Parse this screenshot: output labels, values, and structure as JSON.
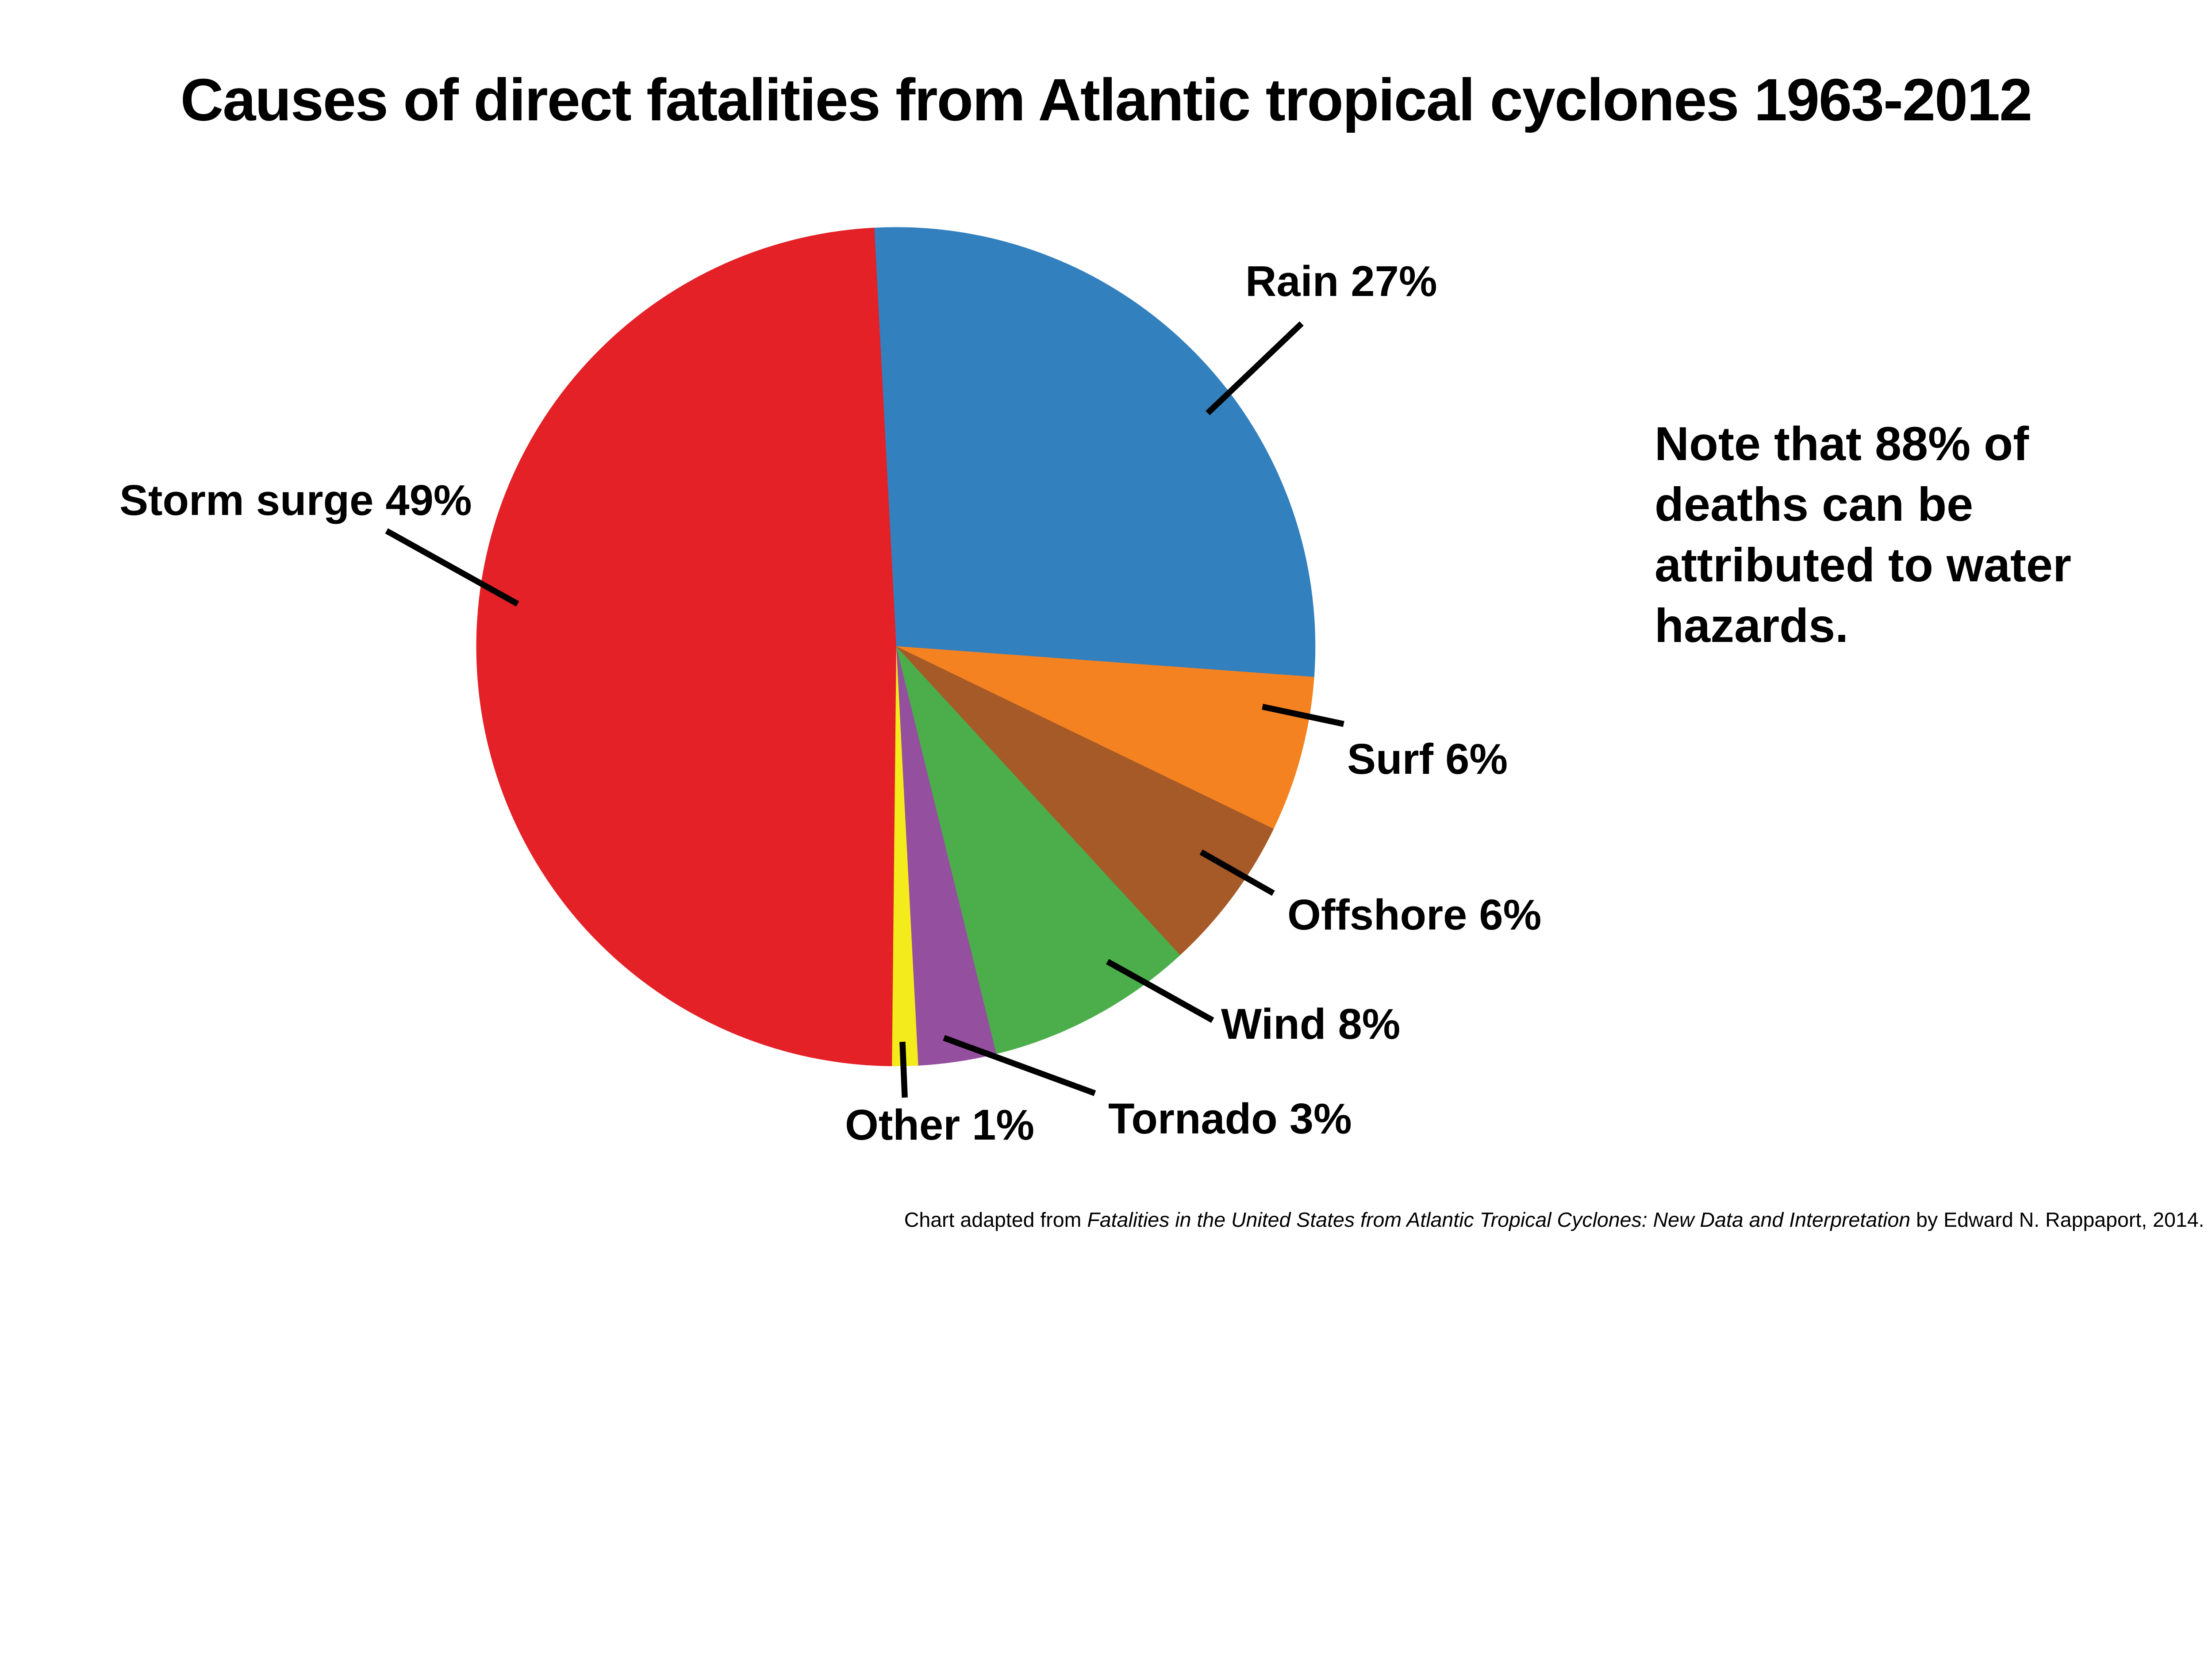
{
  "title": "Causes of direct fatalities from Atlantic tropical cyclones 1963-2012",
  "note_lines": [
    "Note that 88% of",
    "deaths can be",
    "attributed to water",
    "hazards."
  ],
  "footer": {
    "prefix": "Chart adapted from ",
    "source_title": "Fatalities in the United States from Atlantic Tropical Cyclones: New Data and Interpretation",
    "suffix": " by Edward N. Rappaport, 2014."
  },
  "chart_data": {
    "type": "pie",
    "title": "Causes of direct fatalities from Atlantic tropical cyclones 1963-2012",
    "unit": "%",
    "direction": "clockwise",
    "start_angle_deg": -3,
    "legend": "none",
    "label_style": "external labels with black leader lines",
    "background_color": "#ffffff",
    "categories": [
      "Rain",
      "Surf",
      "Offshore",
      "Wind",
      "Tornado",
      "Other",
      "Storm surge"
    ],
    "values": [
      27,
      6,
      6,
      8,
      3,
      1,
      49
    ],
    "slices": [
      {
        "name": "Rain",
        "value": 27,
        "label": "Rain 27%",
        "color": "#3380BE"
      },
      {
        "name": "Surf",
        "value": 6,
        "label": "Surf 6%",
        "color": "#F58220"
      },
      {
        "name": "Offshore",
        "value": 6,
        "label": "Offshore 6%",
        "color": "#A65A28"
      },
      {
        "name": "Wind",
        "value": 8,
        "label": "Wind 8%",
        "color": "#4BAE4B"
      },
      {
        "name": "Tornado",
        "value": 3,
        "label": "Tornado 3%",
        "color": "#954F9F"
      },
      {
        "name": "Other",
        "value": 1,
        "label": "Other 1%",
        "color": "#F3EB1C"
      },
      {
        "name": "Storm surge",
        "value": 49,
        "label": "Storm surge 49%",
        "color": "#E32127"
      }
    ]
  }
}
